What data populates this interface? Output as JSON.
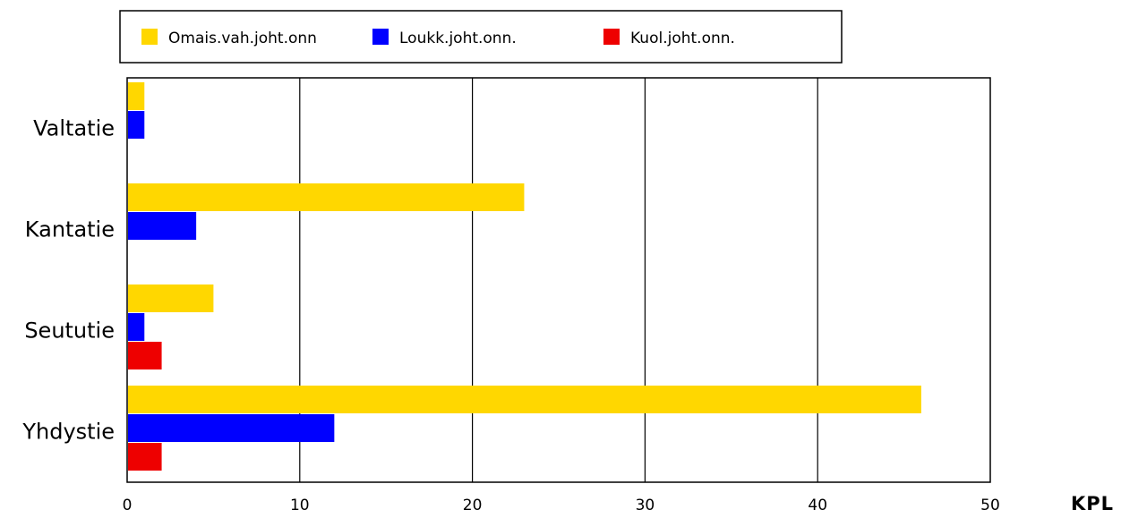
{
  "chart_data": {
    "type": "bar",
    "orientation": "horizontal",
    "categories": [
      "Valtatie",
      "Kantatie",
      "Seututie",
      "Yhdystie"
    ],
    "series": [
      {
        "name": "Omais.vah.joht.onn",
        "color": "#FFD700",
        "values": [
          1,
          23,
          5,
          46
        ]
      },
      {
        "name": "Loukk.joht.onn.",
        "color": "#0000FF",
        "values": [
          1,
          4,
          1,
          12
        ]
      },
      {
        "name": "Kuol.joht.onn.",
        "color": "#EE0000",
        "values": [
          0,
          0,
          2,
          2
        ]
      }
    ],
    "x_ticks": [
      "0",
      "10",
      "20",
      "30",
      "40",
      "50"
    ],
    "xlim": [
      0,
      50
    ],
    "xlabel": "KPL",
    "grid": "vertical",
    "legend_position": "top"
  }
}
